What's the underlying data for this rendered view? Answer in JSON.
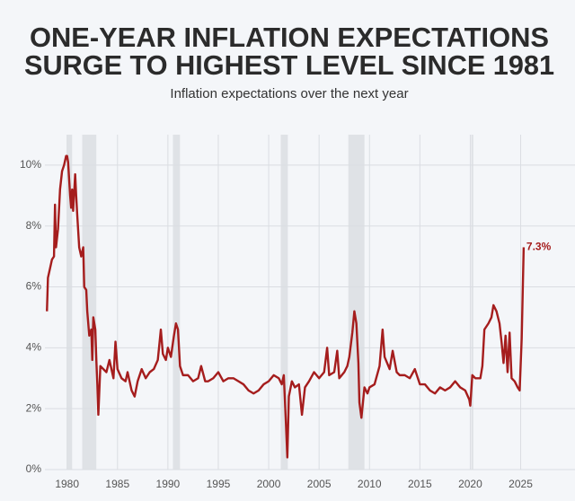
{
  "chart_data": {
    "type": "line",
    "title": [
      "ONE-YEAR INFLATION EXPECTATIONS",
      "SURGE TO HIGHEST LEVEL SINCE 1981"
    ],
    "subtitle": "Inflation expectations over the next year",
    "annotation": {
      "text": "7.3%",
      "value": 7.3
    },
    "xlim": [
      1977.8,
      2026.2
    ],
    "xticks": [
      1980,
      1985,
      1990,
      1995,
      2000,
      2005,
      2010,
      2015,
      2020,
      2025
    ],
    "ylim": [
      0,
      11
    ],
    "yticks": [
      {
        "value": 0,
        "label": "0%"
      },
      {
        "value": 2,
        "label": "2%"
      },
      {
        "value": 4,
        "label": "4%"
      },
      {
        "value": 6,
        "label": "6%"
      },
      {
        "value": 8,
        "label": "8%"
      },
      {
        "value": 10,
        "label": "10%"
      }
    ],
    "grid": true,
    "shaded_periods": [
      [
        1980.0,
        1980.5
      ],
      [
        1981.5,
        1982.9
      ],
      [
        1990.5,
        1991.2
      ],
      [
        2001.2,
        2001.9
      ],
      [
        2007.9,
        2009.5
      ],
      [
        2020.1,
        2020.3
      ]
    ],
    "shade_color": "#dfe2e6",
    "x": [
      1978.0,
      1978.1,
      1978.3,
      1978.5,
      1978.7,
      1978.8,
      1978.9,
      1979.1,
      1979.3,
      1979.5,
      1979.7,
      1979.9,
      1980.0,
      1980.1,
      1980.3,
      1980.4,
      1980.5,
      1980.6,
      1980.8,
      1980.9,
      1981.0,
      1981.2,
      1981.4,
      1981.6,
      1981.7,
      1981.9,
      1982.0,
      1982.2,
      1982.4,
      1982.5,
      1982.6,
      1982.8,
      1982.9,
      1983.0,
      1983.1,
      1983.3,
      1983.6,
      1983.9,
      1984.2,
      1984.6,
      1984.8,
      1985.0,
      1985.4,
      1985.8,
      1986.0,
      1986.4,
      1986.7,
      1987.0,
      1987.4,
      1987.8,
      1988.2,
      1988.6,
      1989.0,
      1989.3,
      1989.5,
      1989.8,
      1990.0,
      1990.3,
      1990.6,
      1990.8,
      1991.0,
      1991.2,
      1991.5,
      1992.0,
      1992.5,
      1993.0,
      1993.3,
      1993.7,
      1994.0,
      1994.5,
      1995.0,
      1995.5,
      1996.0,
      1996.5,
      1997.0,
      1997.5,
      1998.0,
      1998.5,
      1999.0,
      1999.5,
      2000.0,
      2000.5,
      2001.0,
      2001.3,
      2001.5,
      2001.7,
      2001.85,
      2002.0,
      2002.3,
      2002.6,
      2003.0,
      2003.3,
      2003.6,
      2004.0,
      2004.5,
      2005.0,
      2005.5,
      2005.8,
      2006.0,
      2006.5,
      2006.8,
      2007.0,
      2007.5,
      2007.8,
      2008.0,
      2008.3,
      2008.5,
      2008.7,
      2008.9,
      2009.0,
      2009.2,
      2009.5,
      2009.8,
      2010.0,
      2010.5,
      2011.0,
      2011.3,
      2011.5,
      2012.0,
      2012.3,
      2012.7,
      2013.0,
      2013.5,
      2014.0,
      2014.5,
      2015.0,
      2015.5,
      2016.0,
      2016.5,
      2017.0,
      2017.5,
      2018.0,
      2018.5,
      2019.0,
      2019.5,
      2019.9,
      2020.0,
      2020.2,
      2020.5,
      2021.0,
      2021.2,
      2021.4,
      2021.8,
      2022.1,
      2022.3,
      2022.6,
      2022.9,
      2023.1,
      2023.3,
      2023.5,
      2023.7,
      2023.9,
      2024.1,
      2024.4,
      2024.7,
      2024.9,
      2025.1,
      2025.3
    ],
    "series": [
      {
        "color": "#a51d1d",
        "values": [
          5.2,
          6.3,
          6.6,
          6.9,
          7.0,
          8.7,
          7.3,
          7.9,
          9.2,
          9.8,
          10.0,
          10.3,
          10.3,
          10.1,
          9.0,
          8.6,
          9.2,
          8.5,
          9.7,
          9.0,
          8.4,
          7.3,
          7.0,
          7.3,
          6.0,
          5.9,
          5.2,
          4.4,
          4.6,
          3.6,
          5.0,
          4.6,
          3.6,
          2.8,
          1.8,
          3.4,
          3.3,
          3.2,
          3.6,
          3.0,
          4.2,
          3.3,
          3.0,
          2.9,
          3.2,
          2.6,
          2.4,
          2.9,
          3.3,
          3.0,
          3.2,
          3.3,
          3.6,
          4.6,
          3.8,
          3.6,
          4.0,
          3.7,
          4.4,
          4.8,
          4.6,
          3.4,
          3.1,
          3.1,
          2.9,
          3.0,
          3.4,
          2.9,
          2.9,
          3.0,
          3.2,
          2.9,
          3.0,
          3.0,
          2.9,
          2.8,
          2.6,
          2.5,
          2.6,
          2.8,
          2.9,
          3.1,
          3.0,
          2.8,
          3.1,
          1.6,
          0.4,
          2.4,
          2.9,
          2.7,
          2.8,
          1.8,
          2.7,
          2.9,
          3.2,
          3.0,
          3.2,
          4.0,
          3.1,
          3.2,
          3.9,
          3.0,
          3.2,
          3.4,
          3.7,
          4.5,
          5.2,
          4.8,
          3.5,
          2.2,
          1.7,
          2.7,
          2.5,
          2.7,
          2.8,
          3.4,
          4.6,
          3.7,
          3.3,
          3.9,
          3.2,
          3.1,
          3.1,
          3.0,
          3.3,
          2.8,
          2.8,
          2.6,
          2.5,
          2.7,
          2.6,
          2.7,
          2.9,
          2.7,
          2.6,
          2.3,
          2.1,
          3.1,
          3.0,
          3.0,
          3.4,
          4.6,
          4.8,
          5.0,
          5.4,
          5.2,
          4.8,
          4.2,
          3.5,
          4.4,
          3.2,
          4.5,
          3.0,
          2.9,
          2.7,
          2.6,
          4.3,
          7.3
        ]
      }
    ]
  }
}
